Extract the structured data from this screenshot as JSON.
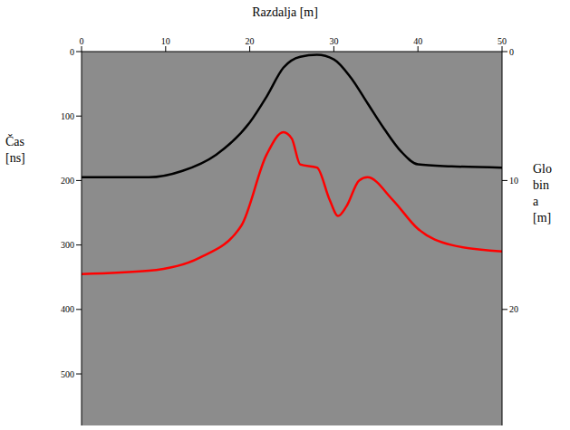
{
  "chart_data": {
    "type": "line",
    "x_label": "Razdalja [m]",
    "y_label": "Čas [ns]",
    "y2_label": "Globina [m]",
    "xlim": [
      0,
      50
    ],
    "xticks": [
      0,
      10,
      20,
      30,
      40,
      50
    ],
    "ylim": [
      0,
      580
    ],
    "yticks": [
      0,
      100,
      200,
      300,
      400,
      500
    ],
    "y2lim": [
      0,
      29
    ],
    "y2ticks": [
      0,
      10,
      20
    ],
    "grid": false,
    "series": [
      {
        "color": "#000000",
        "x": [
          0,
          8,
          12,
          16,
          20,
          22,
          24,
          26,
          28,
          30,
          32,
          34,
          36,
          38,
          40,
          44,
          50
        ],
        "values": [
          195,
          195,
          185,
          160,
          110,
          70,
          25,
          8,
          5,
          12,
          40,
          80,
          120,
          155,
          175,
          178,
          180
        ]
      },
      {
        "color": "#ff0000",
        "x": [
          0,
          8,
          14,
          19,
          22,
          24,
          25,
          26,
          28,
          29.5,
          30.5,
          31.5,
          33,
          34,
          37,
          40,
          44,
          50
        ],
        "values": [
          345,
          340,
          320,
          270,
          160,
          125,
          135,
          175,
          180,
          230,
          255,
          240,
          200,
          195,
          230,
          275,
          300,
          310
        ]
      }
    ]
  }
}
